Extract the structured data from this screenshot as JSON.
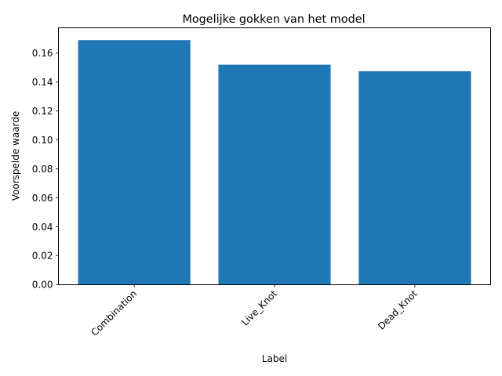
{
  "chart_data": {
    "type": "bar",
    "title": "Mogelijke gokken van het model",
    "xlabel": "Label",
    "ylabel": "Voorspelde waarde",
    "categories": [
      "Combination",
      "Live_Knot",
      "Dead_Knot"
    ],
    "values": [
      0.169,
      0.152,
      0.1475
    ],
    "ylim": [
      0,
      0.1775
    ],
    "yticks": [
      "0.00",
      "0.02",
      "0.04",
      "0.06",
      "0.08",
      "0.10",
      "0.12",
      "0.14",
      "0.16"
    ],
    "grid": false,
    "legend": "none",
    "bar_color": "#1f77b4",
    "xtick_rotation_deg": 45
  }
}
